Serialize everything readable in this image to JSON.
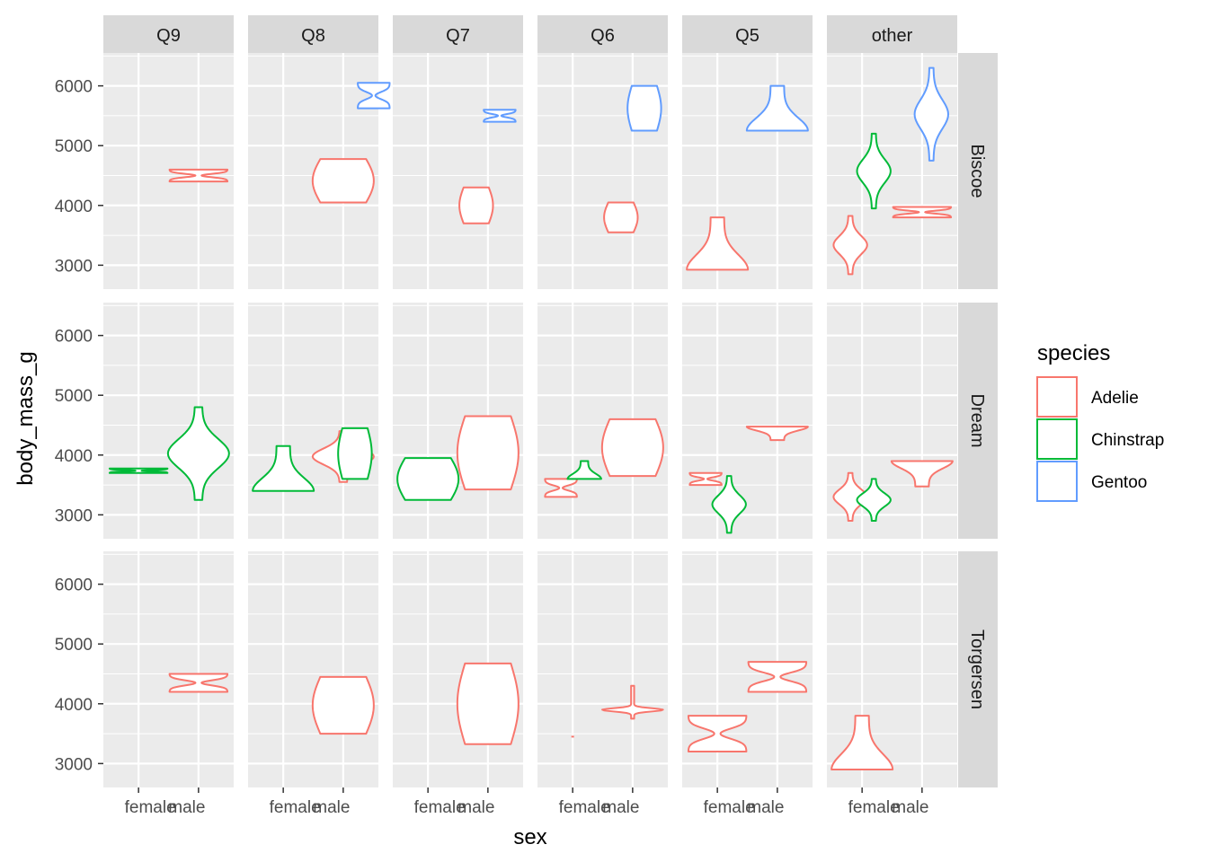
{
  "chart_data": {
    "type": "violin",
    "xlabel": "sex",
    "ylabel": "body_mass_g",
    "column_facets": [
      "Q9",
      "Q8",
      "Q7",
      "Q6",
      "Q5",
      "other"
    ],
    "row_facets": [
      "Biscoe",
      "Dream",
      "Torgersen"
    ],
    "x_categories": [
      "female",
      "male"
    ],
    "y_ticks": [
      3000,
      4000,
      5000,
      6000
    ],
    "y_tick_labels": [
      "3000",
      "4000",
      "5000",
      "6000"
    ],
    "ylim": [
      2600,
      6550
    ],
    "legend": {
      "title": "species",
      "entries": [
        {
          "name": "Adelie",
          "color": "#F8766D"
        },
        {
          "name": "Chinstrap",
          "color": "#00BA38"
        },
        {
          "name": "Gentoo",
          "color": "#619CFF"
        }
      ]
    },
    "violins": [
      {
        "row": "Biscoe",
        "col": "Q9",
        "sex": "male",
        "species": "Adelie",
        "min": 4400,
        "max": 4600,
        "shape": "hourglass"
      },
      {
        "row": "Biscoe",
        "col": "Q8",
        "sex": "male",
        "species": "Adelie",
        "min": 4050,
        "max": 4775,
        "shape": "bulge"
      },
      {
        "row": "Biscoe",
        "col": "Q8",
        "sex": "male",
        "species": "Gentoo",
        "min": 5625,
        "max": 6050,
        "shape": "hourglass",
        "dodge": 0.65
      },
      {
        "row": "Biscoe",
        "col": "Q7",
        "sex": "male",
        "species": "Adelie",
        "min": 3700,
        "max": 4300,
        "shape": "bulge",
        "dodge": -0.25
      },
      {
        "row": "Biscoe",
        "col": "Q7",
        "sex": "male",
        "species": "Gentoo",
        "min": 5400,
        "max": 5600,
        "shape": "hourglass",
        "dodge": 0.25
      },
      {
        "row": "Biscoe",
        "col": "Q6",
        "sex": "male",
        "species": "Adelie",
        "min": 3550,
        "max": 4050,
        "shape": "bulge",
        "dodge": -0.25
      },
      {
        "row": "Biscoe",
        "col": "Q6",
        "sex": "male",
        "species": "Gentoo",
        "min": 5250,
        "max": 6000,
        "shape": "bulge",
        "dodge": 0.25
      },
      {
        "row": "Biscoe",
        "col": "Q5",
        "sex": "female",
        "species": "Adelie",
        "min": 2925,
        "max": 3800,
        "shape": "bottom"
      },
      {
        "row": "Biscoe",
        "col": "Q5",
        "sex": "male",
        "species": "Gentoo",
        "min": 5250,
        "max": 6000,
        "shape": "bottom"
      },
      {
        "row": "Biscoe",
        "col": "other",
        "sex": "female",
        "species": "Adelie",
        "min": 2850,
        "max": 3825,
        "shape": "spindle",
        "dodge": -0.25
      },
      {
        "row": "Biscoe",
        "col": "other",
        "sex": "female",
        "species": "Chinstrap",
        "min": 3950,
        "max": 5200,
        "shape": "spindle",
        "dodge": 0.25
      },
      {
        "row": "Biscoe",
        "col": "other",
        "sex": "male",
        "species": "Adelie",
        "min": 3800,
        "max": 3975,
        "shape": "hourglass",
        "dodge": 0
      },
      {
        "row": "Biscoe",
        "col": "other",
        "sex": "male",
        "species": "Gentoo",
        "min": 4750,
        "max": 6300,
        "shape": "spindle",
        "dodge": 0.2
      },
      {
        "row": "Dream",
        "col": "Q9",
        "sex": "female",
        "species": "Chinstrap",
        "min": 3700,
        "max": 3775,
        "shape": "hourglass"
      },
      {
        "row": "Dream",
        "col": "Q9",
        "sex": "male",
        "species": "Chinstrap",
        "min": 3250,
        "max": 4800,
        "shape": "spindle"
      },
      {
        "row": "Dream",
        "col": "Q8",
        "sex": "female",
        "species": "Chinstrap",
        "min": 3400,
        "max": 4150,
        "shape": "bottom"
      },
      {
        "row": "Dream",
        "col": "Q8",
        "sex": "male",
        "species": "Adelie",
        "min": 3550,
        "max": 4400,
        "shape": "spindle"
      },
      {
        "row": "Dream",
        "col": "Q8",
        "sex": "male",
        "species": "Chinstrap",
        "min": 3600,
        "max": 4450,
        "shape": "bulge",
        "dodge": 0.25
      },
      {
        "row": "Dream",
        "col": "Q7",
        "sex": "female",
        "species": "Chinstrap",
        "min": 3250,
        "max": 3950,
        "shape": "bulge"
      },
      {
        "row": "Dream",
        "col": "Q7",
        "sex": "male",
        "species": "Adelie",
        "min": 3425,
        "max": 4650,
        "shape": "bulge"
      },
      {
        "row": "Dream",
        "col": "Q6",
        "sex": "female",
        "species": "Adelie",
        "min": 3300,
        "max": 3600,
        "shape": "hourglass",
        "dodge": -0.25
      },
      {
        "row": "Dream",
        "col": "Q6",
        "sex": "female",
        "species": "Chinstrap",
        "min": 3600,
        "max": 3900,
        "shape": "bottom",
        "dodge": 0.25
      },
      {
        "row": "Dream",
        "col": "Q6",
        "sex": "male",
        "species": "Adelie",
        "min": 3650,
        "max": 4600,
        "shape": "bulge"
      },
      {
        "row": "Dream",
        "col": "Q5",
        "sex": "female",
        "species": "Adelie",
        "min": 3500,
        "max": 3700,
        "shape": "hourglass",
        "dodge": -0.25
      },
      {
        "row": "Dream",
        "col": "Q5",
        "sex": "female",
        "species": "Chinstrap",
        "min": 2700,
        "max": 3650,
        "shape": "spindle",
        "dodge": 0.25
      },
      {
        "row": "Dream",
        "col": "Q5",
        "sex": "male",
        "species": "Adelie",
        "min": 4250,
        "max": 4475,
        "shape": "top"
      },
      {
        "row": "Dream",
        "col": "other",
        "sex": "female",
        "species": "Adelie",
        "min": 2900,
        "max": 3700,
        "shape": "spindle",
        "dodge": -0.25
      },
      {
        "row": "Dream",
        "col": "other",
        "sex": "female",
        "species": "Chinstrap",
        "min": 2900,
        "max": 3600,
        "shape": "spindle",
        "dodge": 0.25
      },
      {
        "row": "Dream",
        "col": "other",
        "sex": "male",
        "species": "Adelie",
        "min": 3475,
        "max": 3900,
        "shape": "top"
      },
      {
        "row": "Torgersen",
        "col": "Q9",
        "sex": "male",
        "species": "Adelie",
        "min": 4200,
        "max": 4500,
        "shape": "hourglass"
      },
      {
        "row": "Torgersen",
        "col": "Q8",
        "sex": "male",
        "species": "Adelie",
        "min": 3500,
        "max": 4450,
        "shape": "bulge"
      },
      {
        "row": "Torgersen",
        "col": "Q7",
        "sex": "male",
        "species": "Adelie",
        "min": 3325,
        "max": 4675,
        "shape": "bulge"
      },
      {
        "row": "Torgersen",
        "col": "Q6",
        "sex": "female",
        "species": "Adelie",
        "min": 3450,
        "max": 3450,
        "shape": "point"
      },
      {
        "row": "Torgersen",
        "col": "Q6",
        "sex": "male",
        "species": "Adelie",
        "min": 3750,
        "max": 4300,
        "shape": "spike"
      },
      {
        "row": "Torgersen",
        "col": "Q5",
        "sex": "female",
        "species": "Adelie",
        "min": 3200,
        "max": 3800,
        "shape": "hourglass"
      },
      {
        "row": "Torgersen",
        "col": "Q5",
        "sex": "male",
        "species": "Adelie",
        "min": 4200,
        "max": 4700,
        "shape": "hourglass"
      },
      {
        "row": "Torgersen",
        "col": "other",
        "sex": "female",
        "species": "Adelie",
        "min": 2900,
        "max": 3800,
        "shape": "bottom"
      }
    ]
  }
}
